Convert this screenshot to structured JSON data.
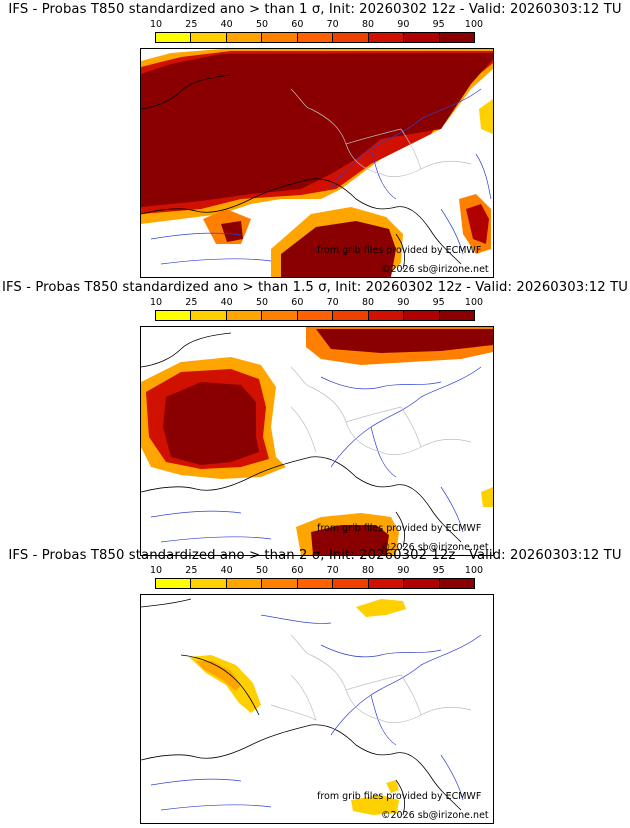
{
  "colorbar": {
    "ticks": [
      "10",
      "25",
      "40",
      "50",
      "60",
      "70",
      "80",
      "90",
      "95",
      "100"
    ],
    "colors": [
      "#ffff00",
      "#ffd000",
      "#ffa500",
      "#ff8000",
      "#ff6000",
      "#f04000",
      "#d01000",
      "#b00000",
      "#8a0000"
    ]
  },
  "credits": {
    "source": "from grib files provided by ECMWF",
    "copyright": "©2026 sb@irizone.net"
  },
  "panels": [
    {
      "title": "IFS - Probas T850  standardized ano > than 1 σ, Init: 20260302 12z - Valid: 20260303:12 TU",
      "threshold_sigma": 1
    },
    {
      "title": "IFS - Probas T850  standardized ano > than 1.5 σ, Init: 20260302 12z - Valid: 20260303:12 TU",
      "threshold_sigma": 1.5
    },
    {
      "title": "IFS - Probas T850  standardized ano > than 2 σ, Init: 20260302 12z - Valid: 20260303:12 TU",
      "threshold_sigma": 2
    }
  ]
}
